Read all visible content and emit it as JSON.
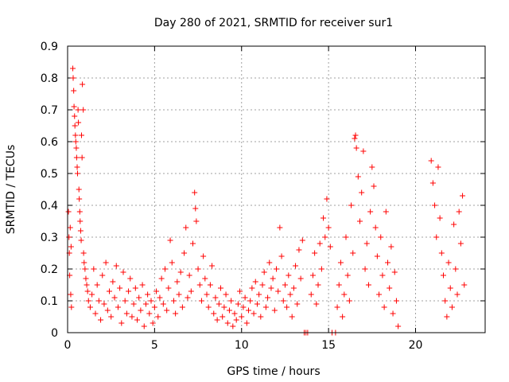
{
  "chart_data": {
    "type": "scatter",
    "title": "Day 280 of 2021, SRMTID for receiver sur1",
    "xlabel": "GPS time / hours",
    "ylabel": "SRMTID / TECUs",
    "xlim": [
      0,
      24
    ],
    "ylim": [
      0,
      0.9
    ],
    "xticks": [
      0,
      5,
      10,
      15,
      20
    ],
    "yticks": [
      0,
      0.1,
      0.2,
      0.3,
      0.4,
      0.5,
      0.6,
      0.7,
      0.8,
      0.9
    ],
    "xtick_labels": [
      "0",
      "5",
      "10",
      "15",
      "20"
    ],
    "ytick_labels": [
      "0",
      "0.1",
      "0.2",
      "0.3",
      "0.4",
      "0.5",
      "0.6",
      "0.7",
      "0.8",
      "0.9"
    ],
    "grid": true,
    "marker": "+",
    "series_color": "#ff0000",
    "series": [
      {
        "name": "sur1",
        "points": [
          [
            0.05,
            0.38
          ],
          [
            0.08,
            0.3
          ],
          [
            0.1,
            0.25
          ],
          [
            0.12,
            0.18
          ],
          [
            0.15,
            0.33
          ],
          [
            0.18,
            0.12
          ],
          [
            0.2,
            0.27
          ],
          [
            0.22,
            0.08
          ],
          [
            0.3,
            0.83
          ],
          [
            0.32,
            0.8
          ],
          [
            0.35,
            0.76
          ],
          [
            0.37,
            0.71
          ],
          [
            0.4,
            0.68
          ],
          [
            0.42,
            0.65
          ],
          [
            0.45,
            0.62
          ],
          [
            0.47,
            0.6
          ],
          [
            0.5,
            0.58
          ],
          [
            0.52,
            0.55
          ],
          [
            0.55,
            0.52
          ],
          [
            0.57,
            0.5
          ],
          [
            0.6,
            0.7
          ],
          [
            0.62,
            0.66
          ],
          [
            0.65,
            0.45
          ],
          [
            0.67,
            0.42
          ],
          [
            0.7,
            0.38
          ],
          [
            0.72,
            0.35
          ],
          [
            0.75,
            0.32
          ],
          [
            0.78,
            0.29
          ],
          [
            0.8,
            0.62
          ],
          [
            0.83,
            0.55
          ],
          [
            0.85,
            0.78
          ],
          [
            0.9,
            0.7
          ],
          [
            0.92,
            0.25
          ],
          [
            0.95,
            0.22
          ],
          [
            1.0,
            0.2
          ],
          [
            1.05,
            0.17
          ],
          [
            1.1,
            0.15
          ],
          [
            1.15,
            0.13
          ],
          [
            1.2,
            0.1
          ],
          [
            1.3,
            0.08
          ],
          [
            1.4,
            0.12
          ],
          [
            1.5,
            0.2
          ],
          [
            1.6,
            0.06
          ],
          [
            1.7,
            0.15
          ],
          [
            1.8,
            0.1
          ],
          [
            1.9,
            0.04
          ],
          [
            2.0,
            0.18
          ],
          [
            2.1,
            0.09
          ],
          [
            2.2,
            0.22
          ],
          [
            2.3,
            0.07
          ],
          [
            2.4,
            0.13
          ],
          [
            2.5,
            0.05
          ],
          [
            2.6,
            0.16
          ],
          [
            2.7,
            0.11
          ],
          [
            2.8,
            0.21
          ],
          [
            2.9,
            0.08
          ],
          [
            3.0,
            0.14
          ],
          [
            3.1,
            0.03
          ],
          [
            3.2,
            0.19
          ],
          [
            3.3,
            0.1
          ],
          [
            3.4,
            0.06
          ],
          [
            3.5,
            0.13
          ],
          [
            3.6,
            0.17
          ],
          [
            3.7,
            0.05
          ],
          [
            3.8,
            0.09
          ],
          [
            3.9,
            0.14
          ],
          [
            4.0,
            0.04
          ],
          [
            4.1,
            0.11
          ],
          [
            4.2,
            0.07
          ],
          [
            4.3,
            0.15
          ],
          [
            4.4,
            0.02
          ],
          [
            4.5,
            0.09
          ],
          [
            4.6,
            0.12
          ],
          [
            4.7,
            0.06
          ],
          [
            4.8,
            0.1
          ],
          [
            4.9,
            0.03
          ],
          [
            5.0,
            0.08
          ],
          [
            5.1,
            0.13
          ],
          [
            5.2,
            0.05
          ],
          [
            5.3,
            0.11
          ],
          [
            5.4,
            0.17
          ],
          [
            5.5,
            0.09
          ],
          [
            5.6,
            0.2
          ],
          [
            5.7,
            0.07
          ],
          [
            5.8,
            0.14
          ],
          [
            5.9,
            0.29
          ],
          [
            6.0,
            0.22
          ],
          [
            6.1,
            0.1
          ],
          [
            6.2,
            0.06
          ],
          [
            6.3,
            0.16
          ],
          [
            6.4,
            0.12
          ],
          [
            6.5,
            0.19
          ],
          [
            6.6,
            0.08
          ],
          [
            6.7,
            0.25
          ],
          [
            6.8,
            0.33
          ],
          [
            6.9,
            0.11
          ],
          [
            7.0,
            0.18
          ],
          [
            7.1,
            0.13
          ],
          [
            7.2,
            0.28
          ],
          [
            7.3,
            0.44
          ],
          [
            7.35,
            0.39
          ],
          [
            7.4,
            0.35
          ],
          [
            7.5,
            0.2
          ],
          [
            7.6,
            0.15
          ],
          [
            7.7,
            0.1
          ],
          [
            7.8,
            0.24
          ],
          [
            7.9,
            0.17
          ],
          [
            8.0,
            0.12
          ],
          [
            8.1,
            0.08
          ],
          [
            8.2,
            0.15
          ],
          [
            8.3,
            0.21
          ],
          [
            8.4,
            0.06
          ],
          [
            8.5,
            0.11
          ],
          [
            8.6,
            0.04
          ],
          [
            8.7,
            0.09
          ],
          [
            8.8,
            0.14
          ],
          [
            8.9,
            0.05
          ],
          [
            9.0,
            0.08
          ],
          [
            9.1,
            0.12
          ],
          [
            9.2,
            0.03
          ],
          [
            9.3,
            0.07
          ],
          [
            9.4,
            0.1
          ],
          [
            9.5,
            0.02
          ],
          [
            9.6,
            0.06
          ],
          [
            9.7,
            0.04
          ],
          [
            9.8,
            0.09
          ],
          [
            9.9,
            0.13
          ],
          [
            10.0,
            0.05
          ],
          [
            10.1,
            0.08
          ],
          [
            10.2,
            0.11
          ],
          [
            10.3,
            0.03
          ],
          [
            10.4,
            0.07
          ],
          [
            10.5,
            0.1
          ],
          [
            10.6,
            0.14
          ],
          [
            10.7,
            0.06
          ],
          [
            10.8,
            0.16
          ],
          [
            10.9,
            0.09
          ],
          [
            11.0,
            0.12
          ],
          [
            11.1,
            0.05
          ],
          [
            11.2,
            0.15
          ],
          [
            11.3,
            0.19
          ],
          [
            11.4,
            0.08
          ],
          [
            11.5,
            0.11
          ],
          [
            11.6,
            0.22
          ],
          [
            11.7,
            0.14
          ],
          [
            11.8,
            0.17
          ],
          [
            11.9,
            0.07
          ],
          [
            12.0,
            0.2
          ],
          [
            12.1,
            0.13
          ],
          [
            12.2,
            0.33
          ],
          [
            12.3,
            0.24
          ],
          [
            12.4,
            0.1
          ],
          [
            12.5,
            0.15
          ],
          [
            12.6,
            0.08
          ],
          [
            12.7,
            0.18
          ],
          [
            12.8,
            0.12
          ],
          [
            12.9,
            0.05
          ],
          [
            13.0,
            0.14
          ],
          [
            13.1,
            0.21
          ],
          [
            13.2,
            0.09
          ],
          [
            13.3,
            0.26
          ],
          [
            13.4,
            0.17
          ],
          [
            13.5,
            0.29
          ],
          [
            13.6,
            0.0
          ],
          [
            13.7,
            0.0
          ],
          [
            13.8,
            0.0
          ],
          [
            14.0,
            0.12
          ],
          [
            14.1,
            0.18
          ],
          [
            14.2,
            0.25
          ],
          [
            14.3,
            0.09
          ],
          [
            14.4,
            0.15
          ],
          [
            14.5,
            0.28
          ],
          [
            14.6,
            0.2
          ],
          [
            14.7,
            0.36
          ],
          [
            14.8,
            0.3
          ],
          [
            14.9,
            0.42
          ],
          [
            15.0,
            0.33
          ],
          [
            15.1,
            0.27
          ],
          [
            15.2,
            0.0
          ],
          [
            15.4,
            0.0
          ],
          [
            15.5,
            0.08
          ],
          [
            15.6,
            0.15
          ],
          [
            15.7,
            0.22
          ],
          [
            15.8,
            0.05
          ],
          [
            15.9,
            0.12
          ],
          [
            16.0,
            0.3
          ],
          [
            16.1,
            0.18
          ],
          [
            16.2,
            0.1
          ],
          [
            16.3,
            0.4
          ],
          [
            16.4,
            0.25
          ],
          [
            16.5,
            0.61
          ],
          [
            16.55,
            0.62
          ],
          [
            16.6,
            0.58
          ],
          [
            16.7,
            0.49
          ],
          [
            16.8,
            0.35
          ],
          [
            16.9,
            0.44
          ],
          [
            17.0,
            0.57
          ],
          [
            17.1,
            0.2
          ],
          [
            17.2,
            0.28
          ],
          [
            17.3,
            0.15
          ],
          [
            17.4,
            0.38
          ],
          [
            17.5,
            0.52
          ],
          [
            17.6,
            0.46
          ],
          [
            17.7,
            0.33
          ],
          [
            17.8,
            0.24
          ],
          [
            17.9,
            0.12
          ],
          [
            18.0,
            0.3
          ],
          [
            18.1,
            0.18
          ],
          [
            18.2,
            0.08
          ],
          [
            18.3,
            0.38
          ],
          [
            18.4,
            0.22
          ],
          [
            18.5,
            0.14
          ],
          [
            18.6,
            0.27
          ],
          [
            18.7,
            0.06
          ],
          [
            18.8,
            0.19
          ],
          [
            18.9,
            0.1
          ],
          [
            19.0,
            0.02
          ],
          [
            20.9,
            0.54
          ],
          [
            21.0,
            0.47
          ],
          [
            21.1,
            0.4
          ],
          [
            21.2,
            0.3
          ],
          [
            21.3,
            0.52
          ],
          [
            21.4,
            0.36
          ],
          [
            21.5,
            0.25
          ],
          [
            21.6,
            0.18
          ],
          [
            21.7,
            0.1
          ],
          [
            21.8,
            0.05
          ],
          [
            21.9,
            0.22
          ],
          [
            22.0,
            0.14
          ],
          [
            22.1,
            0.08
          ],
          [
            22.2,
            0.34
          ],
          [
            22.3,
            0.2
          ],
          [
            22.4,
            0.12
          ],
          [
            22.5,
            0.38
          ],
          [
            22.6,
            0.28
          ],
          [
            22.7,
            0.43
          ],
          [
            22.8,
            0.15
          ]
        ]
      }
    ]
  }
}
